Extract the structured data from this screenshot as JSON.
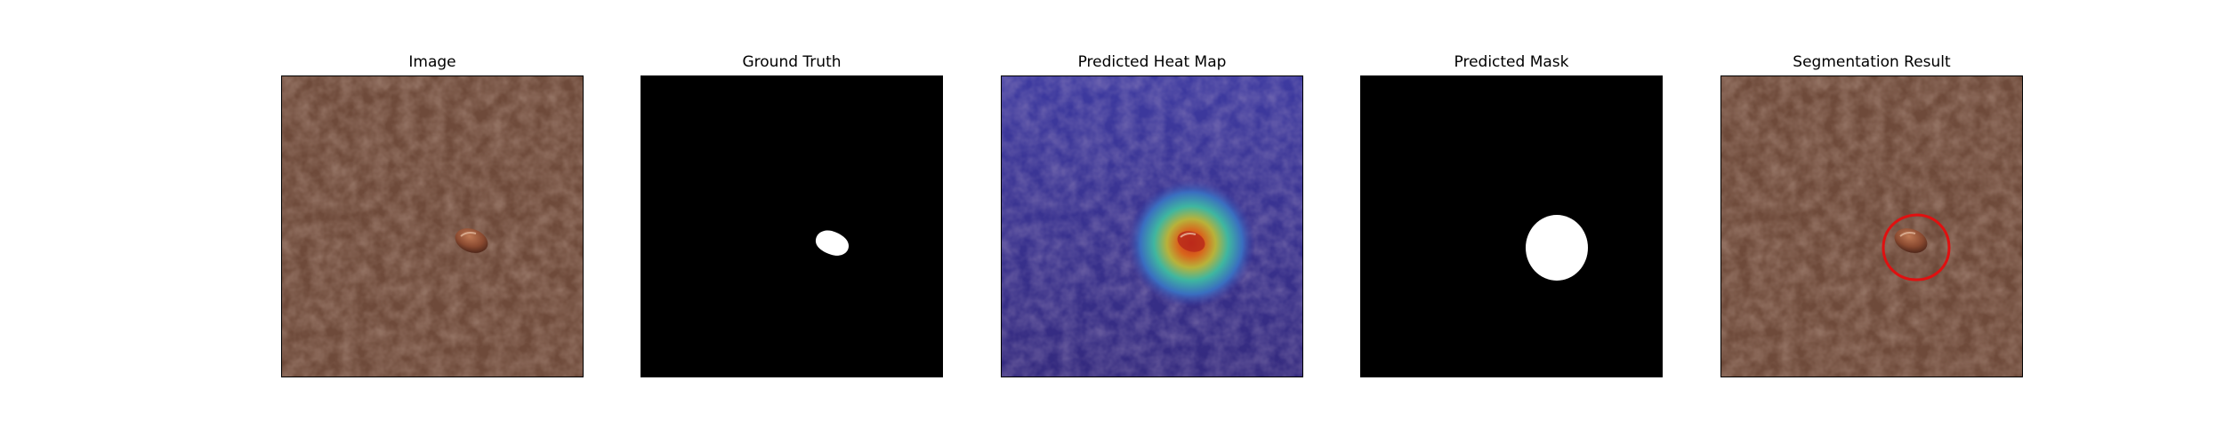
{
  "figure": {
    "panels": [
      {
        "id": "image",
        "title": "Image"
      },
      {
        "id": "ground-truth",
        "title": "Ground Truth"
      },
      {
        "id": "heatmap",
        "title": "Predicted Heat Map"
      },
      {
        "id": "predicted-mask",
        "title": "Predicted Mask"
      },
      {
        "id": "segmentation",
        "title": "Segmentation Result"
      }
    ]
  },
  "colors": {
    "leather": "#6e4a3a",
    "leather_dark": "#5a3a2d",
    "defect": "#8a4a30",
    "mask_background": "#000000",
    "mask_foreground": "#ffffff",
    "heat_low": "#3a2e8c",
    "heat_mid": "#3fb6a0",
    "heat_high": "#c8361c",
    "circle": "#e01010"
  }
}
